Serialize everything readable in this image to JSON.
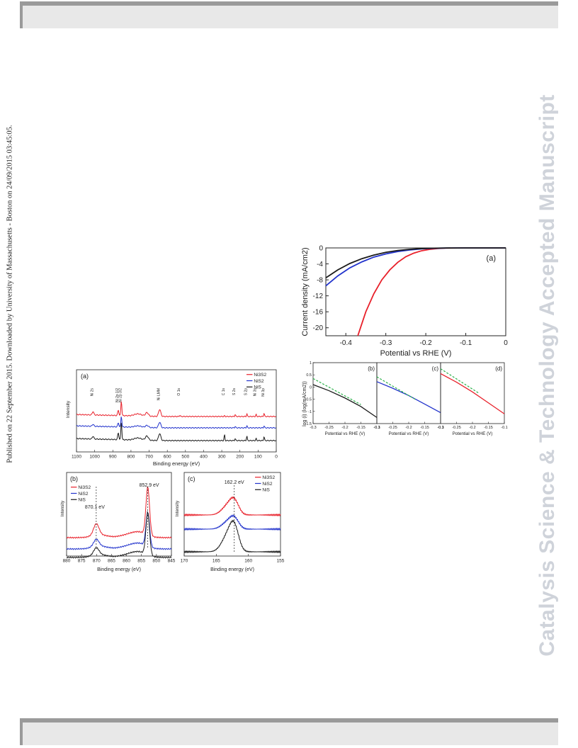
{
  "sidebar_text": "Published on 22 September 2015. Downloaded by University of Massachusetts - Boston on 24/09/2015 03:45:05.",
  "watermark": "Catalysis Science & Technology Accepted Manuscript",
  "colors": {
    "Ni3S2": "#e8202a",
    "NiS2": "#2233cc",
    "NiS": "#1a1a1a",
    "fit": "#2bb14a",
    "frame": "#9a9a9a"
  },
  "legend": {
    "Ni3S2": "Ni3S2",
    "NiS2": "NiS2",
    "NiS": "NiS"
  },
  "chart_data": [
    {
      "id": "xps-survey",
      "type": "line",
      "panel": "(a)",
      "xlabel": "Binding energy (eV)",
      "ylabel": "Intensity",
      "xlim": [
        1100,
        0
      ],
      "xticks": [
        1100,
        1000,
        900,
        800,
        700,
        600,
        500,
        400,
        300,
        200,
        100,
        0
      ],
      "series_order": [
        "Ni3S2",
        "NiS2",
        "NiS"
      ],
      "peak_labels": [
        {
          "label": "Ni 2s",
          "x": 1009
        },
        {
          "label": "Ni 2p 1/2",
          "x": 870
        },
        {
          "label": "Ni 2p 3/2",
          "x": 853
        },
        {
          "label": "Ni LMM",
          "x": 642
        },
        {
          "label": "O 1s",
          "x": 531
        },
        {
          "label": "C 1s",
          "x": 285
        },
        {
          "label": "S 2s",
          "x": 226
        },
        {
          "label": "S 2p",
          "x": 162
        },
        {
          "label": "Ni 3s",
          "x": 111
        },
        {
          "label": "Ni 3p",
          "x": 67
        }
      ]
    },
    {
      "id": "xps-ni2p",
      "type": "line",
      "panel": "(b)",
      "xlabel": "Binding energy (eV)",
      "ylabel": "Intensity",
      "xlim": [
        880,
        845
      ],
      "xticks": [
        880,
        875,
        870,
        865,
        860,
        855,
        850,
        845
      ],
      "annotations": [
        {
          "label": "870.1 eV",
          "x": 870.1
        },
        {
          "label": "852.9 eV",
          "x": 852.9
        }
      ]
    },
    {
      "id": "xps-s2p",
      "type": "line",
      "panel": "(c)",
      "xlabel": "Binding energy (eV)",
      "ylabel": "Intensity",
      "xlim": [
        170,
        155
      ],
      "xticks": [
        170,
        165,
        160,
        155
      ],
      "annotations": [
        {
          "label": "162.2 eV",
          "x": 162.2
        }
      ]
    },
    {
      "id": "lsv",
      "type": "line",
      "panel": "(a)",
      "xlabel": "Potential vs RHE (V)",
      "ylabel": "Current density (mA/cm2)",
      "xlim": [
        -0.45,
        0
      ],
      "ylim": [
        -22,
        0
      ],
      "xticks": [
        -0.4,
        -0.3,
        -0.2,
        -0.1,
        0
      ],
      "yticks": [
        0,
        -4,
        -8,
        -12,
        -16,
        -20
      ],
      "series": [
        {
          "name": "Ni3S2",
          "x": [
            -0.37,
            -0.35,
            -0.33,
            -0.31,
            -0.29,
            -0.27,
            -0.25,
            -0.23,
            -0.21,
            -0.19,
            -0.17,
            -0.15,
            -0.1,
            0
          ],
          "y": [
            -22,
            -16,
            -11.5,
            -8,
            -5.5,
            -3.6,
            -2.2,
            -1.3,
            -0.7,
            -0.35,
            -0.15,
            -0.05,
            0,
            0
          ]
        },
        {
          "name": "NiS2",
          "x": [
            -0.45,
            -0.42,
            -0.39,
            -0.36,
            -0.33,
            -0.3,
            -0.27,
            -0.24,
            -0.21,
            -0.18,
            -0.15,
            -0.1,
            0
          ],
          "y": [
            -9.5,
            -7.0,
            -5.0,
            -3.5,
            -2.3,
            -1.5,
            -0.9,
            -0.5,
            -0.25,
            -0.1,
            -0.03,
            0,
            0
          ]
        },
        {
          "name": "NiS",
          "x": [
            -0.45,
            -0.42,
            -0.39,
            -0.36,
            -0.33,
            -0.3,
            -0.27,
            -0.24,
            -0.21,
            -0.18,
            -0.15,
            -0.1,
            0
          ],
          "y": [
            -7.5,
            -5.5,
            -3.9,
            -2.7,
            -1.8,
            -1.1,
            -0.65,
            -0.35,
            -0.17,
            -0.07,
            -0.02,
            0,
            0
          ]
        }
      ]
    },
    {
      "id": "tafel-b",
      "type": "line",
      "panel": "(b)",
      "xlabel": "Potential vs RHE (V)",
      "ylabel": "log (i) (log(mA/cm2))",
      "xlim": [
        -0.3,
        -0.1
      ],
      "ylim": [
        -1.5,
        1.0
      ],
      "xticks": [
        -0.3,
        -0.25,
        -0.2,
        -0.15,
        -0.1
      ],
      "yticks": [
        1.0,
        0.5,
        0.0,
        -0.5,
        -1.0,
        -1.5
      ],
      "series": [
        {
          "name": "NiS",
          "x": [
            -0.3,
            -0.25,
            -0.2,
            -0.15,
            -0.1
          ],
          "y": [
            0.1,
            -0.15,
            -0.45,
            -0.8,
            -1.25
          ]
        },
        {
          "name": "fit",
          "x": [
            -0.3,
            -0.15
          ],
          "y": [
            0.35,
            -0.72
          ]
        }
      ]
    },
    {
      "id": "tafel-c",
      "type": "line",
      "panel": "(c)",
      "xlabel": "Potential vs RHE (V)",
      "xlim": [
        -0.3,
        -0.1
      ],
      "ylim": [
        -1.5,
        1.0
      ],
      "xticks": [
        -0.3,
        -0.25,
        -0.2,
        -0.15,
        -0.1
      ],
      "series": [
        {
          "name": "NiS2",
          "x": [
            -0.3,
            -0.25,
            -0.2,
            -0.15,
            -0.1
          ],
          "y": [
            0.22,
            -0.05,
            -0.35,
            -0.7,
            -1.05
          ]
        },
        {
          "name": "fit",
          "x": [
            -0.3,
            -0.18
          ],
          "y": [
            0.42,
            -0.5
          ]
        }
      ]
    },
    {
      "id": "tafel-d",
      "type": "line",
      "panel": "(d)",
      "xlabel": "Potential vs RHE (V)",
      "xlim": [
        -0.3,
        -0.1
      ],
      "ylim": [
        -1.5,
        1.0
      ],
      "xticks": [
        -0.3,
        -0.25,
        -0.2,
        -0.15,
        -0.1
      ],
      "series": [
        {
          "name": "Ni3S2",
          "x": [
            -0.3,
            -0.25,
            -0.2,
            -0.15,
            -0.1
          ],
          "y": [
            0.55,
            0.2,
            -0.2,
            -0.65,
            -1.1
          ]
        },
        {
          "name": "fit",
          "x": [
            -0.3,
            -0.18
          ],
          "y": [
            0.75,
            -0.25
          ]
        }
      ]
    }
  ]
}
